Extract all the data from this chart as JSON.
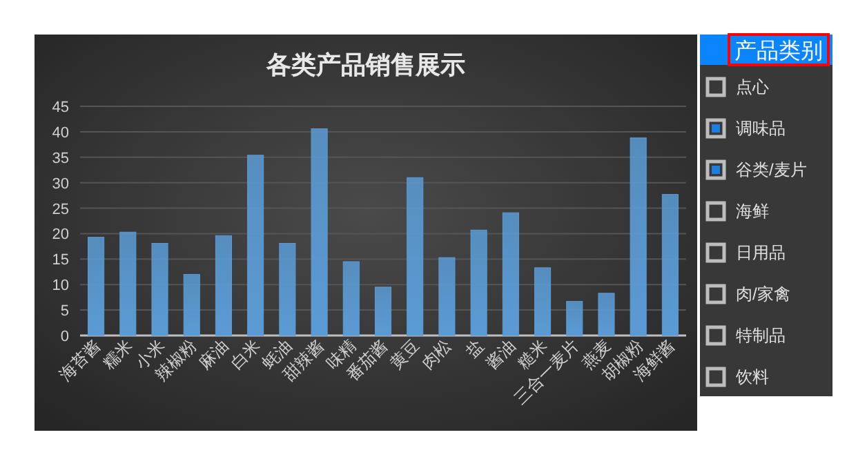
{
  "chart_data": [
    {
      "type": "bar",
      "title": "各类产品销售展示",
      "categories": [
        "海苔酱",
        "糯米",
        "小米",
        "辣椒粉",
        "麻油",
        "白米",
        "蚝油",
        "甜辣酱",
        "味精",
        "番茄酱",
        "黄豆",
        "肉松",
        "盐",
        "酱油",
        "糙米",
        "三合一麦片",
        "燕麦",
        "胡椒粉",
        "海鲜酱"
      ],
      "values": [
        19.3,
        20.3,
        18.1,
        12.0,
        19.6,
        35.4,
        18.1,
        40.6,
        14.5,
        9.5,
        31.0,
        15.3,
        20.7,
        24.1,
        13.3,
        6.7,
        8.3,
        38.8,
        27.7
      ],
      "color": "#5b9bd5",
      "ylim": [
        0,
        45
      ],
      "yticks": [
        0,
        5,
        10,
        15,
        20,
        25,
        30,
        35,
        40,
        45
      ],
      "grid": "y"
    },
    {
      "type": "other",
      "title": "产品类别",
      "categories": [
        "点心",
        "调味品",
        "谷类/麦片",
        "海鲜",
        "日用品",
        "肉/家禽",
        "特制品",
        "饮料"
      ],
      "colors": [
        null,
        "#1a7fe0",
        "#1a7fe0",
        null,
        null,
        null,
        null,
        null
      ]
    }
  ]
}
